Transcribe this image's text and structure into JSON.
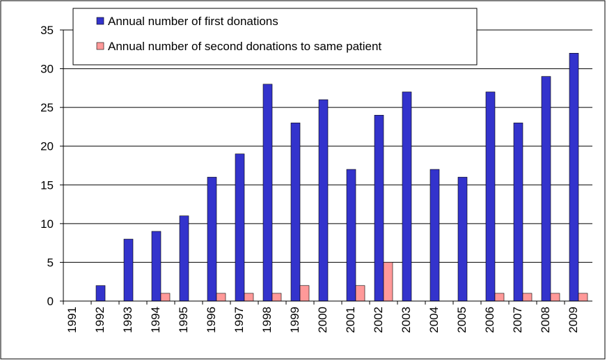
{
  "chart_data": {
    "type": "bar",
    "categories": [
      "1991",
      "1992",
      "1993",
      "1994",
      "1995",
      "1996",
      "1997",
      "1998",
      "1999",
      "2000",
      "2001",
      "2002",
      "2003",
      "2004",
      "2005",
      "2006",
      "2007",
      "2008",
      "2009"
    ],
    "series": [
      {
        "name": "Annual number of first donations",
        "color": "#3333cc",
        "values": [
          0,
          2,
          8,
          9,
          11,
          16,
          19,
          28,
          23,
          26,
          17,
          24,
          27,
          17,
          16,
          27,
          23,
          29,
          32
        ]
      },
      {
        "name": "Annual number of second donations to same patient",
        "color": "#ff9999",
        "values": [
          0,
          0,
          0,
          1,
          0,
          1,
          1,
          1,
          2,
          0,
          2,
          5,
          0,
          0,
          0,
          1,
          1,
          1,
          1
        ]
      }
    ],
    "ylim": [
      0,
      35
    ],
    "yticks": [
      0,
      5,
      10,
      15,
      20,
      25,
      30,
      35
    ],
    "grid": true,
    "legend": "top-left"
  }
}
